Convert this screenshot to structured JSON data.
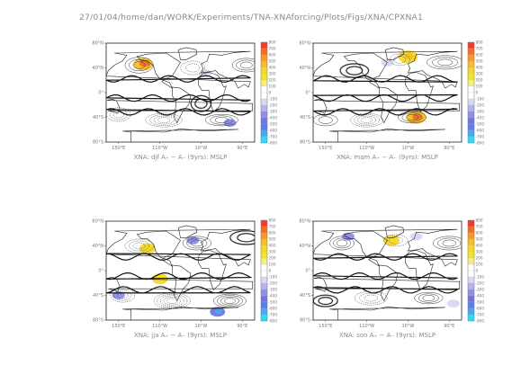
{
  "header": {
    "path": "27/01/04/home/dan/WORK/Experiments/TNA-XNAforcing/Plots/Figs/XNA/CPXNA1"
  },
  "colorbar": {
    "labels": [
      "800",
      "700",
      "600",
      "500",
      "400",
      "300",
      "200",
      "100",
      "0",
      "-100",
      "-200",
      "-300",
      "-400",
      "-500",
      "-600",
      "-700",
      "-800"
    ],
    "colors": [
      "#f53a2a",
      "#f66b2a",
      "#f79a2a",
      "#f7be2a",
      "#f4d92a",
      "#f2e62a",
      "#f4ed8a",
      "#ffffff",
      "#ffffff",
      "#d9d9f6",
      "#b4b4ef",
      "#9090e6",
      "#7474de",
      "#5c7ee6",
      "#49a8ee",
      "#33d8f4"
    ]
  },
  "chart_data": [
    {
      "type": "heatmap",
      "title": "XNA: djf A₊ − A₋ (9yrs): MSLP",
      "x_ticks": [
        "150°E",
        "110°W",
        "10°W",
        "90°E"
      ],
      "y_ticks": [
        "80°N",
        "40°N",
        "0°",
        "40°S",
        "80°S"
      ],
      "shaded_anomalies": [
        {
          "sign": "positive",
          "approx_lon": -150,
          "approx_lat": 52,
          "level": 500
        },
        {
          "sign": "negative",
          "approx_lon": 0,
          "approx_lat": 35,
          "level": -100
        },
        {
          "sign": "negative",
          "approx_lon": 60,
          "approx_lat": -55,
          "level": -300
        }
      ]
    },
    {
      "type": "heatmap",
      "title": "XNA: mam A₊ − A₋ (9yrs): MSLP",
      "x_ticks": [
        "150°E",
        "110°W",
        "10°W",
        "90°E"
      ],
      "y_ticks": [
        "80°N",
        "40°N",
        "0°",
        "40°S",
        "80°S"
      ],
      "shaded_anomalies": [
        {
          "sign": "positive",
          "approx_lon": -10,
          "approx_lat": 65,
          "level": 400
        },
        {
          "sign": "positive",
          "approx_lon": 10,
          "approx_lat": -45,
          "level": 500
        },
        {
          "sign": "negative",
          "approx_lon": -60,
          "approx_lat": 55,
          "level": -100
        }
      ]
    },
    {
      "type": "heatmap",
      "title": "XNA: jja A₊ − A₋ (9yrs): MSLP",
      "x_ticks": [
        "150°E",
        "110°W",
        "10°W",
        "90°E"
      ],
      "y_ticks": [
        "80°N",
        "40°N",
        "0°",
        "40°S",
        "80°S"
      ],
      "shaded_anomalies": [
        {
          "sign": "positive",
          "approx_lon": -110,
          "approx_lat": -15,
          "level": 300
        },
        {
          "sign": "positive",
          "approx_lon": -140,
          "approx_lat": 40,
          "level": 300
        },
        {
          "sign": "negative",
          "approx_lon": -30,
          "approx_lat": 55,
          "level": -300
        },
        {
          "sign": "negative",
          "approx_lon": 30,
          "approx_lat": -75,
          "level": -500
        },
        {
          "sign": "negative",
          "approx_lon": 150,
          "approx_lat": -45,
          "level": -300
        }
      ]
    },
    {
      "type": "heatmap",
      "title": "XNA: son A₊ − A₋ (9yrs): MSLP",
      "x_ticks": [
        "150°E",
        "110°W",
        "10°W",
        "90°E"
      ],
      "y_ticks": [
        "80°N",
        "40°N",
        "0°",
        "40°S",
        "80°S"
      ],
      "shaded_anomalies": [
        {
          "sign": "negative",
          "approx_lon": -155,
          "approx_lat": 62,
          "level": -300
        },
        {
          "sign": "positive",
          "approx_lon": -50,
          "approx_lat": 55,
          "level": 300
        },
        {
          "sign": "negative",
          "approx_lon": 10,
          "approx_lat": 62,
          "level": -100
        },
        {
          "sign": "negative",
          "approx_lon": 100,
          "approx_lat": -60,
          "level": -100
        }
      ]
    }
  ]
}
